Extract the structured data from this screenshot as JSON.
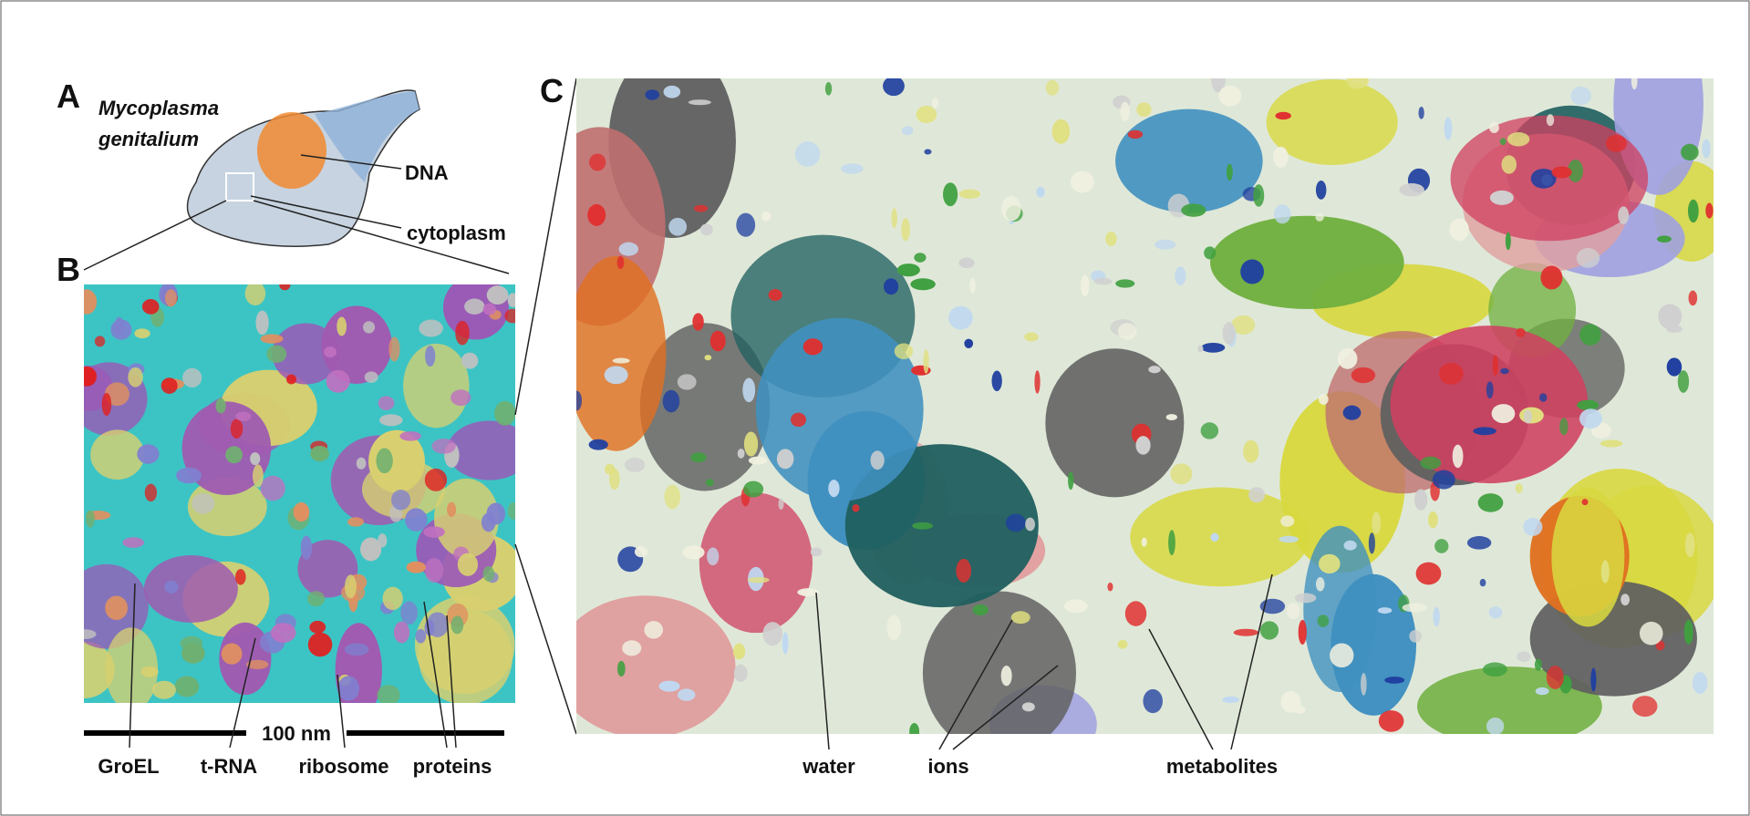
{
  "panel_a": {
    "label": "A",
    "organism": [
      "Mycoplasma",
      "genitalium"
    ],
    "dna": "DNA",
    "cytoplasm": "cytoplasm"
  },
  "panel_b": {
    "label": "B",
    "scale_bar": "100 nm",
    "callouts": [
      "GroEL",
      "t-RNA",
      "ribosome",
      "proteins"
    ]
  },
  "panel_c": {
    "label": "C",
    "callouts": [
      "water",
      "ions",
      "metabolites"
    ]
  }
}
